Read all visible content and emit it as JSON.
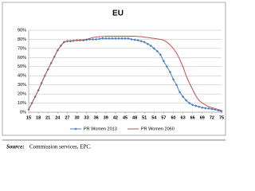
{
  "chart_data": {
    "type": "line",
    "title": "EU",
    "x": [
      15,
      16,
      17,
      18,
      19,
      20,
      21,
      22,
      23,
      24,
      25,
      26,
      27,
      28,
      29,
      30,
      31,
      32,
      33,
      34,
      35,
      36,
      37,
      38,
      39,
      40,
      41,
      42,
      43,
      44,
      45,
      46,
      47,
      48,
      49,
      50,
      51,
      52,
      53,
      54,
      55,
      56,
      57,
      58,
      59,
      60,
      61,
      62,
      63,
      64,
      65,
      66,
      67,
      68,
      69,
      70,
      71,
      72,
      73,
      74,
      75
    ],
    "series": [
      {
        "name": "PR Women 2013",
        "color": "#4a7ebb",
        "markers": true,
        "values": [
          3,
          10,
          17,
          24,
          32,
          40,
          47,
          54,
          61,
          68,
          73,
          77,
          78,
          78,
          78.5,
          79,
          79,
          79,
          79.5,
          80,
          80,
          80,
          80.5,
          81,
          81,
          81,
          81,
          81,
          81,
          81,
          81,
          81,
          80,
          79.5,
          79,
          78,
          77,
          75,
          73,
          70,
          67,
          63,
          56,
          50,
          44,
          36,
          30,
          22,
          17,
          13,
          10,
          8,
          7,
          6,
          5,
          4.5,
          4,
          3.5,
          3,
          2,
          1
        ]
      },
      {
        "name": "PR Women 2060",
        "color": "#c0504d",
        "markers": false,
        "values": [
          3,
          10,
          17,
          24,
          32,
          40,
          47,
          54,
          61,
          68,
          73,
          77,
          78,
          78.5,
          78.5,
          79,
          79,
          79.5,
          80,
          81,
          82,
          82.5,
          83,
          83,
          83.5,
          83.5,
          83.5,
          83.5,
          83.5,
          83.5,
          83.5,
          83.5,
          83.5,
          83.5,
          83,
          83,
          82.5,
          82,
          81.5,
          81,
          80.5,
          80,
          79,
          77,
          74,
          70,
          65,
          58,
          50,
          40,
          32,
          25,
          18,
          13,
          10,
          8,
          6,
          5,
          4,
          3,
          2
        ]
      }
    ],
    "xlim": [
      15,
      75
    ],
    "xticks": [
      15,
      18,
      21,
      24,
      27,
      30,
      33,
      36,
      39,
      42,
      45,
      48,
      51,
      54,
      57,
      60,
      63,
      66,
      69,
      72,
      75
    ],
    "ylim": [
      0,
      90
    ],
    "yticks": [
      {
        "value": 0,
        "label": "0%"
      },
      {
        "value": 10,
        "label": "10%"
      },
      {
        "value": 20,
        "label": "20%"
      },
      {
        "value": 30,
        "label": "30%"
      },
      {
        "value": 40,
        "label": "40%"
      },
      {
        "value": 50,
        "label": "50%"
      },
      {
        "value": 60,
        "label": "60%"
      },
      {
        "value": 70,
        "label": "70%"
      },
      {
        "value": 80,
        "label": "80%"
      },
      {
        "value": 90,
        "label": "90%"
      }
    ],
    "grid": true,
    "legend": "bottom"
  },
  "source": {
    "label": "Source:",
    "text": "Commission services, EPC."
  }
}
